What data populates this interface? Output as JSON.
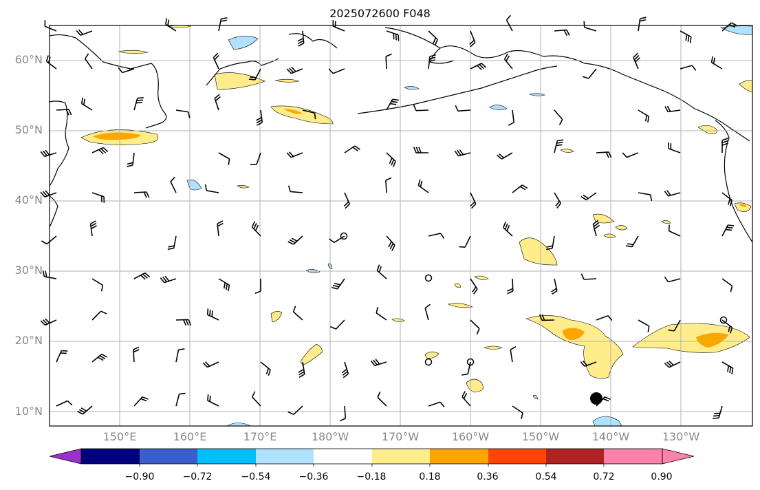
{
  "title": "2025072600 F048",
  "lat_labels": [
    "10°N",
    "20°N",
    "30°N",
    "40°N",
    "50°N",
    "60°N"
  ],
  "lon_labels": [
    "150°E",
    "160°E",
    "170°E",
    "180°W",
    "170°W",
    "160°W",
    "150°W",
    "140°W",
    "130°W"
  ],
  "colorbar": {
    "tick_labels": [
      "−0.90",
      "−0.72",
      "−0.54",
      "−0.36",
      "−0.18",
      "0.18",
      "0.36",
      "0.54",
      "0.72",
      "0.90"
    ],
    "colors": [
      "#9932cc",
      "#000080",
      "#3a5fcd",
      "#00bfff",
      "#b0e2ff",
      "#ffffff",
      "#ffec8b",
      "#ffa500",
      "#ff4500",
      "#b22222",
      "#ff82ab"
    ]
  },
  "map": {
    "projection": "cylindrical",
    "lon_range": "140°E to 120°W",
    "lat_range": "8°N to 65°N",
    "gridlines": true,
    "field_colors": {
      "land_outline": "#000000",
      "positive": "#ffec8b",
      "positive_strong": "#ffa500",
      "negative": "#b0e2ff"
    }
  }
}
